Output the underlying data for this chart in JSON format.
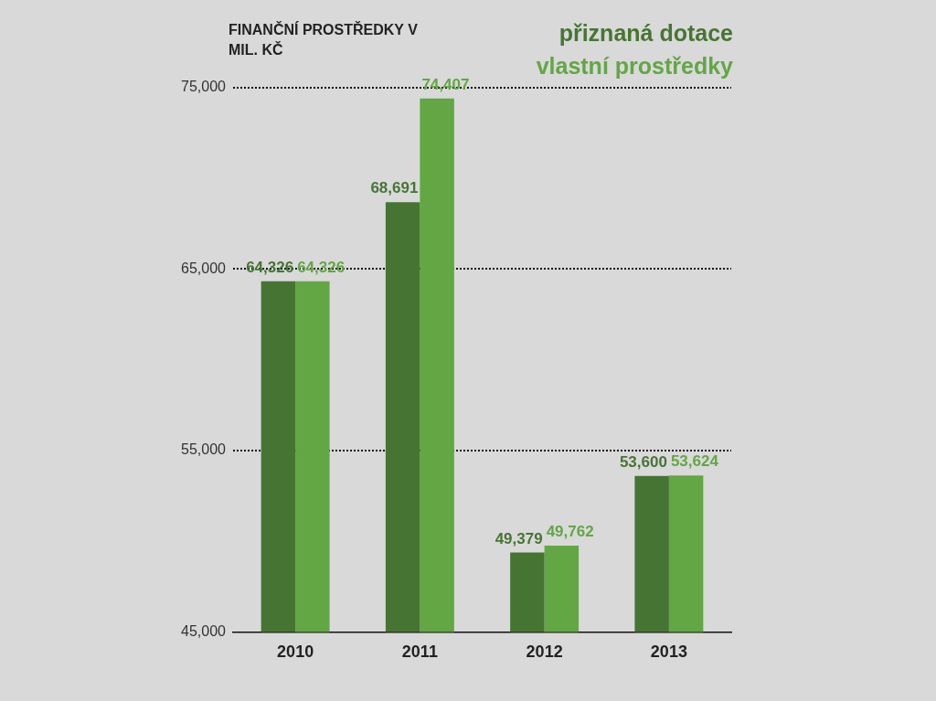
{
  "chart_data": {
    "type": "bar",
    "ylabel": "FINANČNÍ PROSTŘEDKY V MIL. KČ",
    "categories": [
      "2010",
      "2011",
      "2012",
      "2013"
    ],
    "series": [
      {
        "name": "přiznaná dotace",
        "color": "#467533",
        "values": [
          64326,
          68691,
          49379,
          53600
        ],
        "value_labels": [
          "64,326",
          "68,691",
          "49,379",
          "53,600"
        ]
      },
      {
        "name": "vlastní prostředky",
        "color": "#62a744",
        "values": [
          64326,
          74407,
          49762,
          53624
        ],
        "value_labels": [
          "64,326",
          "74,407",
          "49,762",
          "53,624"
        ]
      }
    ],
    "ylim": [
      45000,
      75000
    ],
    "yticks": [
      {
        "value": 45000,
        "label": "45,000"
      },
      {
        "value": 55000,
        "label": "55,000"
      },
      {
        "value": 65000,
        "label": "65,000"
      },
      {
        "value": 75000,
        "label": "75,000"
      }
    ],
    "grid": "y",
    "legend": "top right"
  }
}
